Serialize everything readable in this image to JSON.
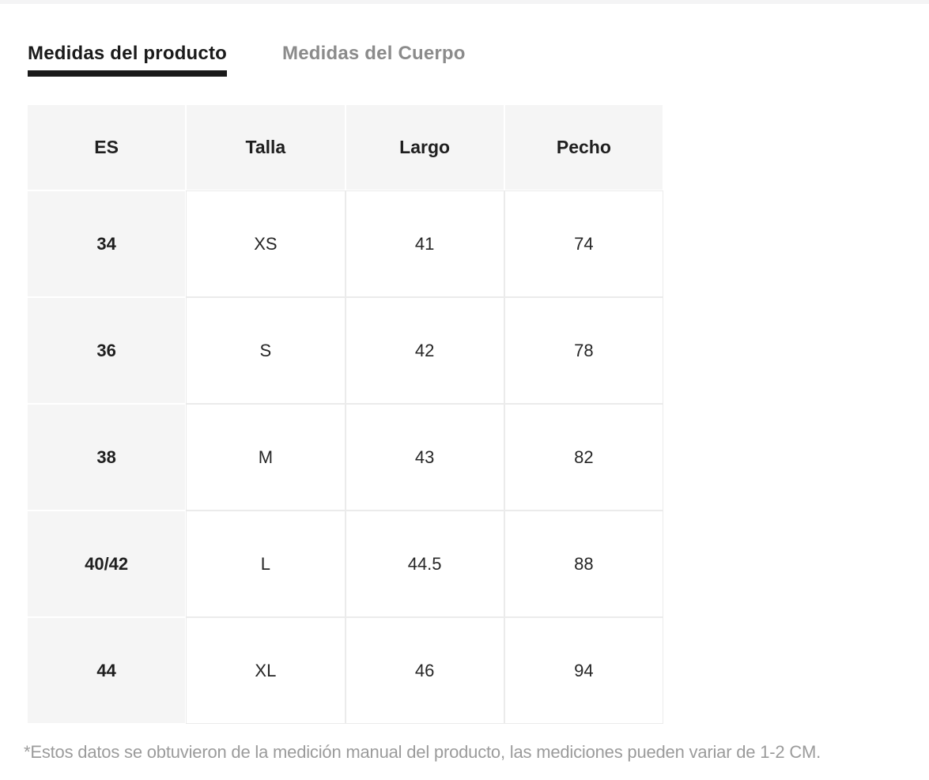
{
  "tabs": [
    {
      "label": "Medidas del producto",
      "active": true
    },
    {
      "label": "Medidas del Cuerpo",
      "active": false
    }
  ],
  "size_table": {
    "headers": [
      "ES",
      "Talla",
      "Largo",
      "Pecho"
    ],
    "rows": [
      [
        "34",
        "XS",
        "41",
        "74"
      ],
      [
        "36",
        "S",
        "42",
        "78"
      ],
      [
        "38",
        "M",
        "43",
        "82"
      ],
      [
        "40/42",
        "L",
        "44.5",
        "88"
      ],
      [
        "44",
        "XL",
        "46",
        "94"
      ]
    ]
  },
  "footnote": "*Estos datos se obtuvieron de la medición manual del producto, las mediciones pueden variar de 1-2 CM.",
  "colors": {
    "active_tab": "#1a1a1a",
    "inactive_tab": "#8b8b8b",
    "tab_underline": "#1a1a1a",
    "shaded_cell_bg": "#f5f5f5",
    "cell_border": "#ebebeb",
    "footnote_text": "#9b9b9b",
    "top_strip": "#f4f4f5"
  }
}
